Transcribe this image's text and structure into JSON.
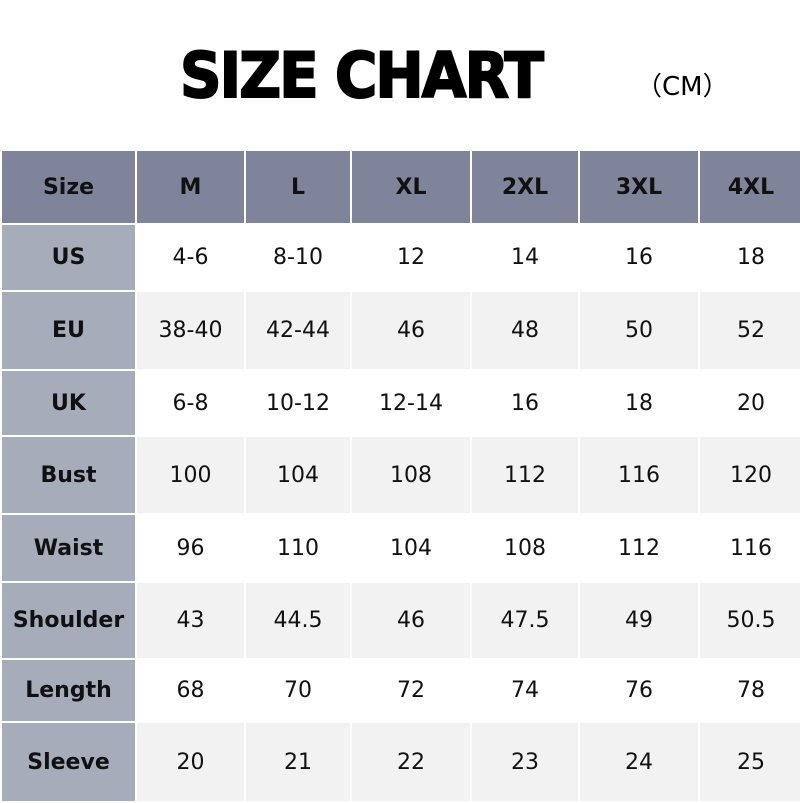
{
  "title": {
    "main": "SIZE CHART",
    "unit": "（CM）"
  },
  "table": {
    "header": [
      "Size",
      "M",
      "L",
      "XL",
      "2XL",
      "3XL",
      "4XL"
    ],
    "rows": [
      {
        "label": "US",
        "values": [
          "4-6",
          "8-10",
          "12",
          "14",
          "16",
          "18"
        ]
      },
      {
        "label": "EU",
        "values": [
          "38-40",
          "42-44",
          "46",
          "48",
          "50",
          "52"
        ]
      },
      {
        "label": "UK",
        "values": [
          "6-8",
          "10-12",
          "12-14",
          "16",
          "18",
          "20"
        ]
      },
      {
        "label": "Bust",
        "values": [
          "100",
          "104",
          "108",
          "112",
          "116",
          "120"
        ]
      },
      {
        "label": "Waist",
        "values": [
          "96",
          "110",
          "104",
          "108",
          "112",
          "116"
        ]
      },
      {
        "label": "Shoulder",
        "values": [
          "43",
          "44.5",
          "46",
          "47.5",
          "49",
          "50.5"
        ]
      },
      {
        "label": "Length",
        "values": [
          "68",
          "70",
          "72",
          "74",
          "76",
          "78"
        ]
      },
      {
        "label": "Sleeve",
        "values": [
          "20",
          "21",
          "22",
          "23",
          "24",
          "25"
        ]
      }
    ]
  },
  "colors": {
    "header_bg": "#7f849b",
    "rowhead_bg": "#a7acbb",
    "alt_row_bg": "#f2f2f2"
  }
}
